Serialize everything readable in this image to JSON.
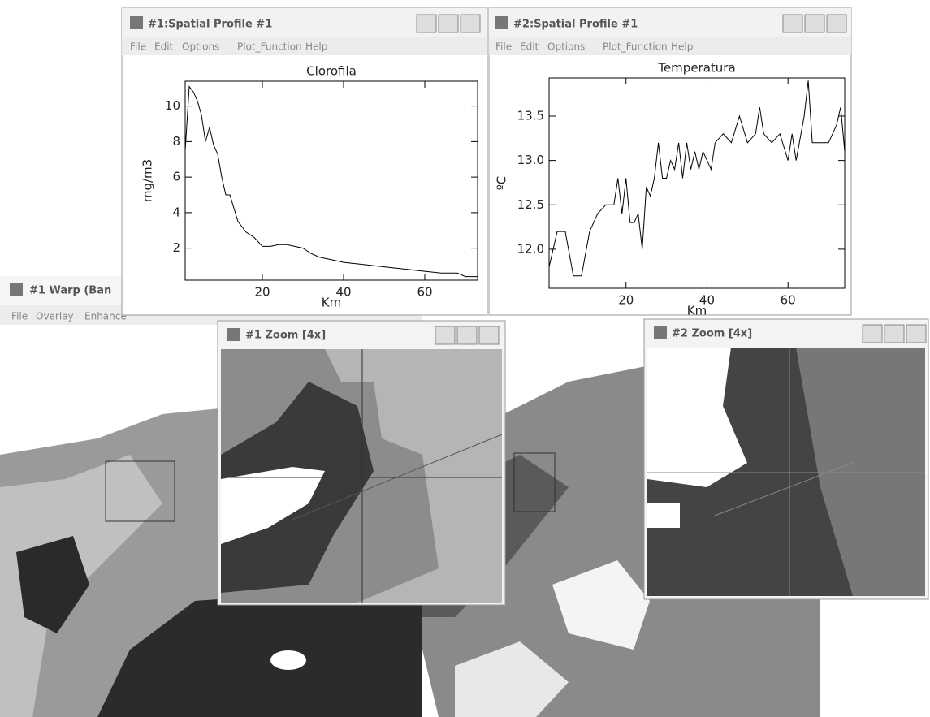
{
  "windows": [
    {
      "title": "#1:Spatial Profile #1",
      "menu": [
        "File",
        "Edit",
        "Options",
        "Plot_Function",
        "Help"
      ]
    },
    {
      "title": "#2:Spatial Profile #1",
      "menu": [
        "File",
        "Edit",
        "Options",
        "Plot_Function",
        "Help"
      ]
    },
    {
      "title": "#1 Warp (Ban",
      "menu": [
        "File",
        "Overlay",
        "Enhance"
      ]
    },
    {
      "title": "#1 Zoom [4x]"
    },
    {
      "title": "#2 Zoom [4x]"
    }
  ],
  "chart_data": [
    {
      "type": "line",
      "title": "Clorofila",
      "x_label": "Km",
      "y_label": "mg/m3",
      "color": "#000000",
      "x": [
        1,
        2,
        3,
        4,
        5,
        6,
        7,
        8,
        9,
        10,
        11,
        12,
        14,
        16,
        18,
        20,
        22,
        24,
        26,
        28,
        30,
        32,
        34,
        36,
        38,
        40,
        44,
        48,
        52,
        56,
        60,
        64,
        68,
        70,
        73
      ],
      "values": [
        7.5,
        11.1,
        10.8,
        10.3,
        9.5,
        8.0,
        8.8,
        7.8,
        7.3,
        6.0,
        5.0,
        5.0,
        3.5,
        2.9,
        2.6,
        2.1,
        2.1,
        2.2,
        2.2,
        2.1,
        2.0,
        1.7,
        1.5,
        1.4,
        1.3,
        1.2,
        1.1,
        1.0,
        0.9,
        0.8,
        0.7,
        0.6,
        0.6,
        0.4,
        0.4
      ],
      "xlim": [
        1,
        73
      ],
      "ylim": [
        0.2,
        11.4
      ],
      "xticks": [
        20,
        40,
        60
      ],
      "yticks": [
        2,
        4,
        6,
        8,
        10
      ]
    },
    {
      "type": "line",
      "title": "Temperatura",
      "x_label": "Km",
      "y_label": "ºC",
      "color": "#000000",
      "x": [
        1,
        3,
        5,
        7,
        9,
        11,
        13,
        15,
        17,
        18,
        19,
        20,
        21,
        22,
        23,
        24,
        25,
        26,
        27,
        28,
        29,
        30,
        31,
        32,
        33,
        34,
        35,
        36,
        37,
        38,
        39,
        40,
        41,
        42,
        44,
        46,
        48,
        50,
        52,
        53,
        54,
        56,
        58,
        60,
        61,
        62,
        64,
        65,
        66,
        68,
        70,
        72,
        73,
        74
      ],
      "values": [
        11.8,
        12.2,
        12.2,
        11.7,
        11.7,
        12.2,
        12.4,
        12.5,
        12.5,
        12.8,
        12.4,
        12.8,
        12.3,
        12.3,
        12.4,
        12.0,
        12.7,
        12.6,
        12.8,
        13.2,
        12.8,
        12.8,
        13.0,
        12.9,
        13.2,
        12.8,
        13.2,
        12.9,
        13.1,
        12.9,
        13.1,
        13.0,
        12.9,
        13.2,
        13.3,
        13.2,
        13.5,
        13.2,
        13.3,
        13.6,
        13.3,
        13.2,
        13.3,
        13.0,
        13.3,
        13.0,
        13.5,
        13.9,
        13.2,
        13.2,
        13.2,
        13.4,
        13.6,
        13.1
      ],
      "xlim": [
        1,
        74
      ],
      "ylim": [
        11.56,
        13.93
      ],
      "xticks": [
        20,
        40,
        60
      ],
      "yticks": [
        {
          "value": 12,
          "label": "12.0"
        },
        12.5,
        {
          "value": 13,
          "label": "13.0"
        },
        13.5
      ]
    }
  ]
}
